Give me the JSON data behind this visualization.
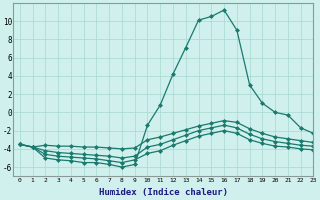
{
  "x": [
    0,
    1,
    2,
    3,
    4,
    5,
    6,
    7,
    8,
    9,
    10,
    11,
    12,
    13,
    14,
    15,
    16,
    17,
    18,
    19,
    20,
    21,
    22,
    23
  ],
  "line_peak": [
    -3.5,
    -3.8,
    -5.0,
    -5.2,
    -5.3,
    -5.5,
    -5.5,
    -5.7,
    -6.0,
    -5.7,
    -1.4,
    0.8,
    4.2,
    7.1,
    10.1,
    10.5,
    11.2,
    9.0,
    3.0,
    1.0,
    0.0,
    -0.3,
    -1.7,
    -2.3
  ],
  "line_flat1": [
    -3.5,
    -3.8,
    -3.6,
    -3.7,
    -3.7,
    -3.8,
    -3.8,
    -3.9,
    -4.0,
    -3.9,
    -3.0,
    -2.7,
    -2.3,
    -1.9,
    -1.5,
    -1.2,
    -0.9,
    -1.1,
    -1.8,
    -2.3,
    -2.7,
    -2.9,
    -3.1,
    -3.3
  ],
  "line_flat2": [
    -3.5,
    -3.8,
    -4.2,
    -4.4,
    -4.5,
    -4.6,
    -4.7,
    -4.8,
    -5.0,
    -4.8,
    -3.8,
    -3.5,
    -3.0,
    -2.5,
    -2.0,
    -1.7,
    -1.4,
    -1.7,
    -2.4,
    -2.9,
    -3.2,
    -3.4,
    -3.6,
    -3.7
  ],
  "line_flat3": [
    -3.5,
    -3.8,
    -4.6,
    -4.8,
    -4.9,
    -5.0,
    -5.1,
    -5.3,
    -5.5,
    -5.2,
    -4.5,
    -4.2,
    -3.6,
    -3.1,
    -2.6,
    -2.3,
    -2.0,
    -2.3,
    -3.0,
    -3.4,
    -3.7,
    -3.8,
    -4.0,
    -4.1
  ],
  "color": "#1a7a6e",
  "bg_color": "#cff0ec",
  "grid_color": "#a8d8d2",
  "xlabel": "Humidex (Indice chaleur)",
  "ylim": [
    -7,
    12
  ],
  "xlim": [
    -0.5,
    23
  ],
  "yticks": [
    -6,
    -4,
    -2,
    0,
    2,
    4,
    6,
    8,
    10
  ],
  "xticks": [
    0,
    1,
    2,
    3,
    4,
    5,
    6,
    7,
    8,
    9,
    10,
    11,
    12,
    13,
    14,
    15,
    16,
    17,
    18,
    19,
    20,
    21,
    22,
    23
  ],
  "marker": "D",
  "markersize": 2.0,
  "linewidth": 0.9
}
